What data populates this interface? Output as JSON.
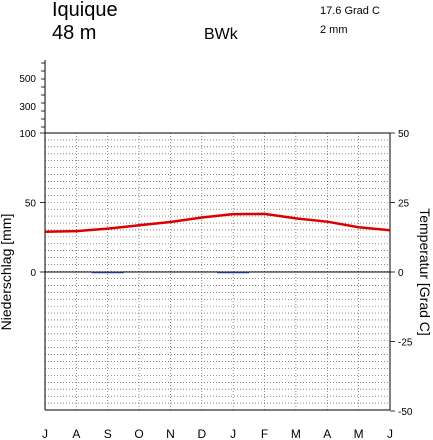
{
  "header": {
    "station": "Iquique",
    "elevation": "48 m",
    "climate_class": "BWk",
    "mean_temperature": "17.6 Grad C",
    "annual_precipitation": "2 mm"
  },
  "chart_data": {
    "type": "line",
    "title": "",
    "categories": [
      "J",
      "A",
      "S",
      "O",
      "N",
      "D",
      "J",
      "F",
      "M",
      "A",
      "M",
      "J"
    ],
    "y_left_label": "Niederschlag [mm]",
    "y_left_ticks": [
      "100",
      "50",
      "0"
    ],
    "y_left_compressed_ticks": [
      "500",
      "300"
    ],
    "y_right_label": "Temperatur [Grad C]",
    "y_right_ticks": [
      "50",
      "25",
      "0",
      "-25",
      "-50"
    ],
    "y_right_range": [
      -50,
      50
    ],
    "grid": true,
    "series": [
      {
        "name": "",
        "axis": "right",
        "color": "#dd0000",
        "values": [
          14.5,
          14.7,
          15.6,
          16.8,
          18.0,
          19.6,
          20.8,
          20.9,
          19.3,
          18.1,
          16.1,
          15.0
        ]
      },
      {
        "name": "",
        "axis": "left",
        "color": "#1a3a8a",
        "values": [
          0,
          0,
          0.5,
          0,
          0,
          0,
          0.5,
          0,
          0,
          0,
          0,
          0
        ]
      }
    ]
  }
}
